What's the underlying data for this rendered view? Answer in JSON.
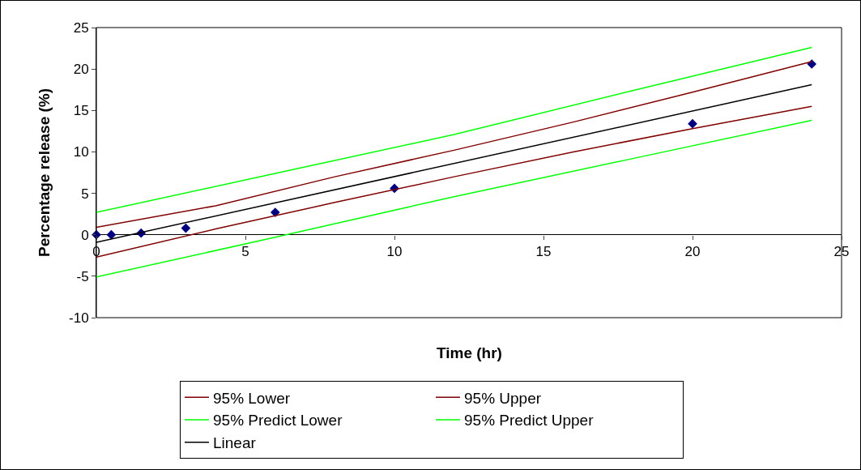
{
  "chart_data": {
    "type": "scatter",
    "xlabel": "Time (hr)",
    "ylabel": "Percentage release (%)",
    "xlim": [
      0,
      25
    ],
    "xticks": [
      0,
      5,
      10,
      15,
      20,
      25
    ],
    "ylim": [
      -10,
      25
    ],
    "yticks": [
      -10,
      -5,
      0,
      5,
      10,
      15,
      20,
      25
    ],
    "grid": false,
    "legend": "bottom",
    "series": [
      {
        "type": "scatter",
        "marker": "diamond",
        "color": "#000080",
        "x": [
          0,
          0.5,
          1.5,
          3,
          6,
          10,
          20,
          24
        ],
        "values": [
          0,
          0,
          0.2,
          0.8,
          2.7,
          5.6,
          13.4,
          20.6
        ]
      },
      {
        "type": "line",
        "name": "95% Lower",
        "color": "#800000",
        "x": [
          0,
          4,
          8,
          12,
          16,
          20,
          24
        ],
        "values": [
          -2.7,
          0.7,
          3.9,
          7.0,
          10.0,
          12.8,
          15.5
        ]
      },
      {
        "type": "line",
        "name": "95% Upper",
        "color": "#800000",
        "x": [
          0,
          4,
          8,
          12,
          16,
          20,
          24
        ],
        "values": [
          0.9,
          3.5,
          7.0,
          10.2,
          13.6,
          17.2,
          20.9
        ]
      },
      {
        "type": "line",
        "name": "95% Predict Lower",
        "color": "#00ff00",
        "x": [
          0,
          6,
          12,
          18,
          24
        ],
        "values": [
          -5.1,
          -0.3,
          4.6,
          9.2,
          13.8
        ]
      },
      {
        "type": "line",
        "name": "95% Predict Upper",
        "color": "#00ff00",
        "x": [
          0,
          6,
          12,
          18,
          24
        ],
        "values": [
          2.7,
          7.4,
          12.1,
          17.4,
          22.6
        ]
      },
      {
        "type": "line",
        "name": "Linear",
        "color": "#000000",
        "x": [
          0,
          24
        ],
        "values": [
          -0.9,
          18.1
        ]
      }
    ]
  }
}
